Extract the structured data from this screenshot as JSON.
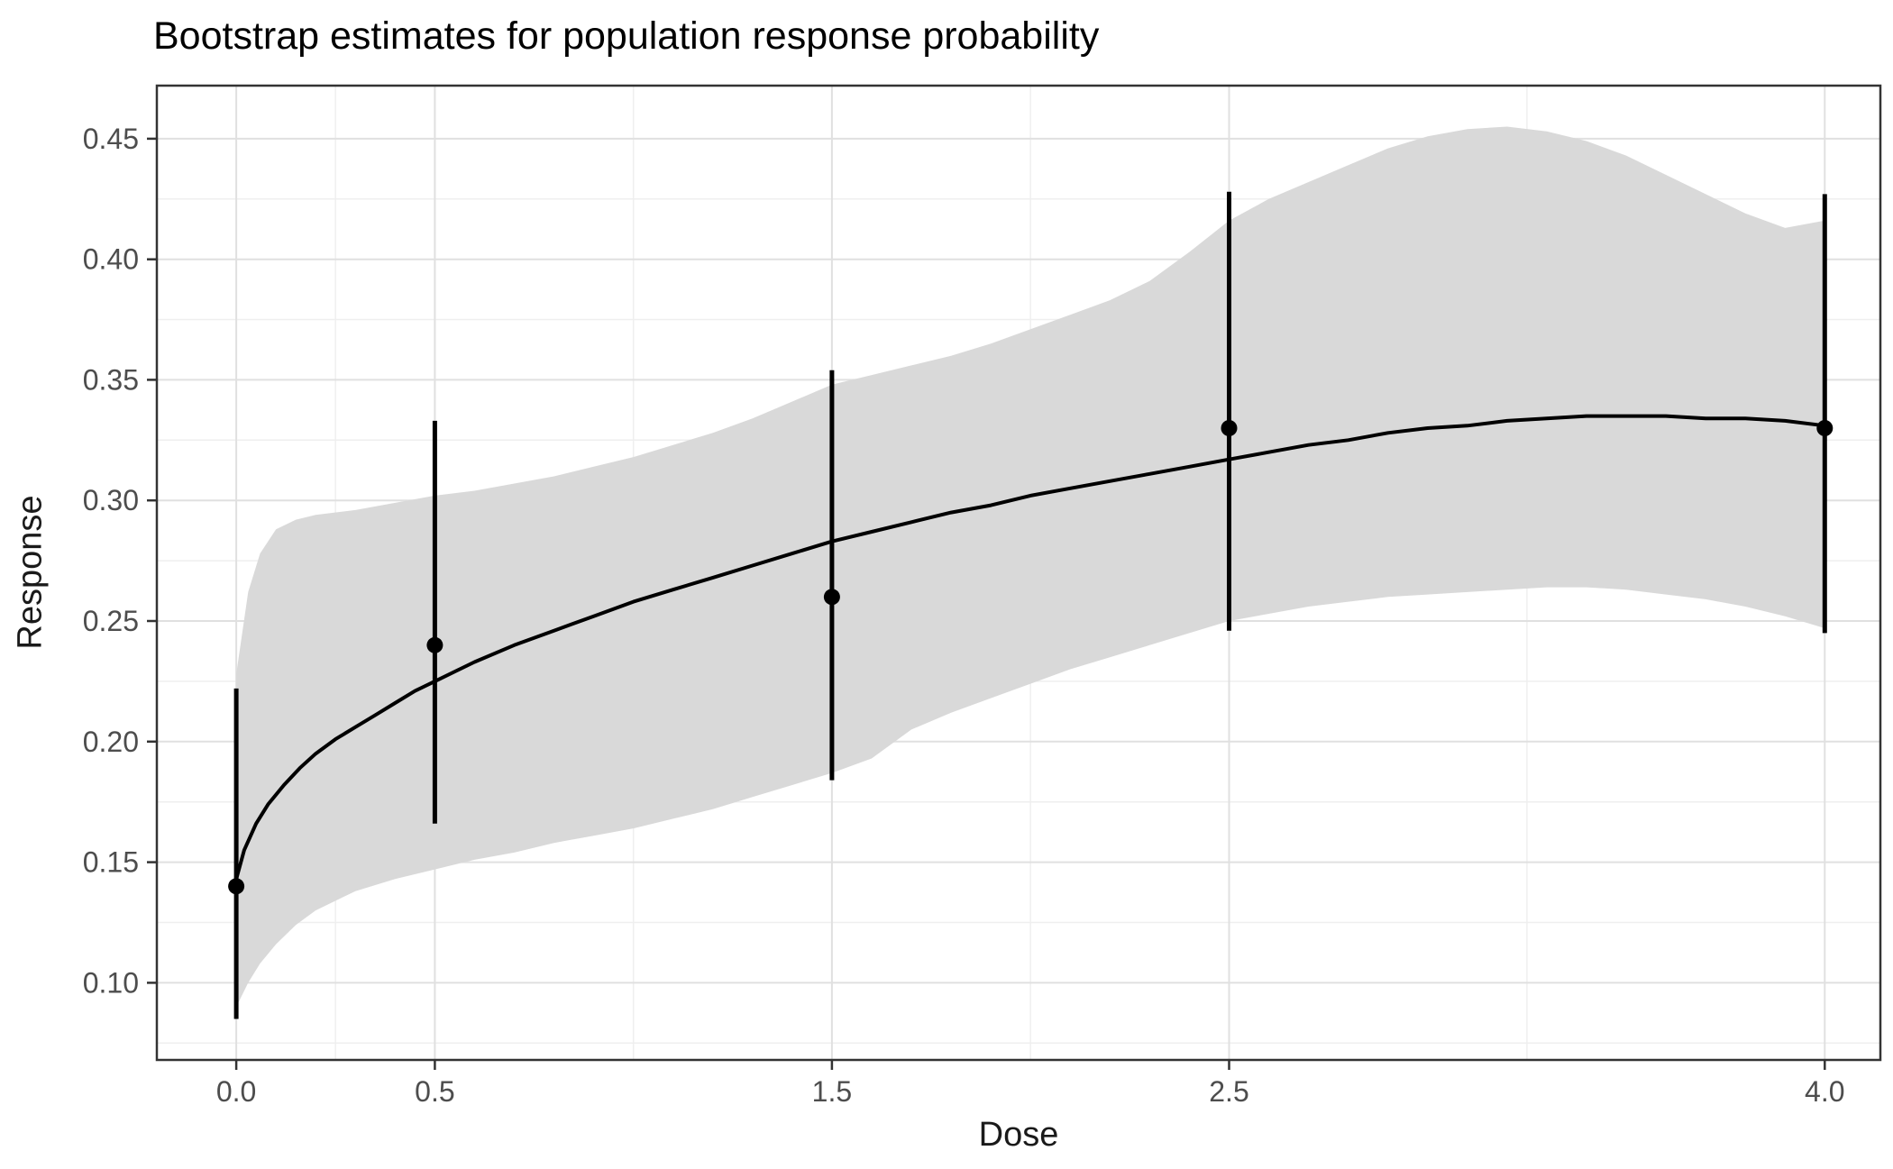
{
  "chart_data": {
    "type": "line",
    "title": "Bootstrap estimates for population response probability",
    "xlabel": "Dose",
    "ylabel": "Response",
    "xlim": [
      -0.2,
      4.14
    ],
    "ylim": [
      0.068,
      0.472
    ],
    "grid": "major-and-minor",
    "legend": "none",
    "x_ticks": {
      "values": [
        0.0,
        0.5,
        1.5,
        2.5,
        4.0
      ],
      "labels": [
        "0.0",
        "0.5",
        "1.5",
        "2.5",
        "4.0"
      ]
    },
    "y_ticks": {
      "values": [
        0.1,
        0.15,
        0.2,
        0.25,
        0.3,
        0.35,
        0.4,
        0.45
      ],
      "labels": [
        "0.10",
        "0.15",
        "0.20",
        "0.25",
        "0.30",
        "0.35",
        "0.40",
        "0.45"
      ]
    },
    "x_minor": [
      0.25,
      1.0,
      2.0,
      3.25
    ],
    "y_minor": [
      0.075,
      0.125,
      0.175,
      0.225,
      0.275,
      0.325,
      0.375,
      0.425
    ],
    "ribbon": {
      "name": "bootstrap confidence band",
      "x": [
        0.0,
        0.03,
        0.06,
        0.1,
        0.15,
        0.2,
        0.3,
        0.4,
        0.5,
        0.6,
        0.7,
        0.8,
        0.9,
        1.0,
        1.1,
        1.2,
        1.3,
        1.4,
        1.5,
        1.6,
        1.7,
        1.8,
        1.9,
        2.0,
        2.1,
        2.2,
        2.3,
        2.4,
        2.5,
        2.6,
        2.7,
        2.8,
        2.9,
        3.0,
        3.1,
        3.2,
        3.3,
        3.4,
        3.5,
        3.6,
        3.7,
        3.8,
        3.9,
        4.0
      ],
      "upper": [
        0.228,
        0.262,
        0.278,
        0.288,
        0.292,
        0.294,
        0.296,
        0.299,
        0.302,
        0.304,
        0.307,
        0.31,
        0.314,
        0.318,
        0.323,
        0.328,
        0.334,
        0.341,
        0.348,
        0.352,
        0.356,
        0.36,
        0.365,
        0.371,
        0.377,
        0.383,
        0.391,
        0.403,
        0.416,
        0.425,
        0.432,
        0.439,
        0.446,
        0.451,
        0.454,
        0.455,
        0.453,
        0.449,
        0.443,
        0.435,
        0.427,
        0.419,
        0.413,
        0.416
      ],
      "lower": [
        0.09,
        0.1,
        0.108,
        0.116,
        0.124,
        0.13,
        0.138,
        0.143,
        0.147,
        0.151,
        0.154,
        0.158,
        0.161,
        0.164,
        0.168,
        0.172,
        0.177,
        0.182,
        0.187,
        0.193,
        0.205,
        0.212,
        0.218,
        0.224,
        0.23,
        0.235,
        0.24,
        0.245,
        0.25,
        0.253,
        0.256,
        0.258,
        0.26,
        0.261,
        0.262,
        0.263,
        0.264,
        0.264,
        0.263,
        0.261,
        0.259,
        0.256,
        0.252,
        0.247
      ]
    },
    "curve": {
      "name": "bootstrap mean response curve",
      "x": [
        0.0,
        0.02,
        0.05,
        0.08,
        0.12,
        0.16,
        0.2,
        0.25,
        0.3,
        0.35,
        0.4,
        0.45,
        0.5,
        0.6,
        0.7,
        0.8,
        0.9,
        1.0,
        1.1,
        1.2,
        1.3,
        1.4,
        1.5,
        1.6,
        1.7,
        1.8,
        1.9,
        2.0,
        2.1,
        2.2,
        2.3,
        2.4,
        2.5,
        2.6,
        2.7,
        2.8,
        2.9,
        3.0,
        3.1,
        3.2,
        3.3,
        3.4,
        3.5,
        3.6,
        3.7,
        3.8,
        3.9,
        4.0
      ],
      "y": [
        0.143,
        0.155,
        0.166,
        0.174,
        0.182,
        0.189,
        0.195,
        0.201,
        0.206,
        0.211,
        0.216,
        0.221,
        0.225,
        0.233,
        0.24,
        0.246,
        0.252,
        0.258,
        0.263,
        0.268,
        0.273,
        0.278,
        0.283,
        0.287,
        0.291,
        0.295,
        0.298,
        0.302,
        0.305,
        0.308,
        0.311,
        0.314,
        0.317,
        0.32,
        0.323,
        0.325,
        0.328,
        0.33,
        0.331,
        0.333,
        0.334,
        0.335,
        0.335,
        0.335,
        0.334,
        0.334,
        0.333,
        0.331
      ]
    },
    "points": [
      {
        "x": 0.0,
        "y": 0.14,
        "lower": 0.085,
        "upper": 0.222
      },
      {
        "x": 0.5,
        "y": 0.24,
        "lower": 0.166,
        "upper": 0.333
      },
      {
        "x": 1.5,
        "y": 0.26,
        "lower": 0.184,
        "upper": 0.354
      },
      {
        "x": 2.5,
        "y": 0.33,
        "lower": 0.246,
        "upper": 0.428
      },
      {
        "x": 4.0,
        "y": 0.33,
        "lower": 0.245,
        "upper": 0.427
      }
    ],
    "colors": {
      "ribbon": "#d9d9d9",
      "line": "#000000",
      "point": "#000000",
      "grid_major": "#e0e0e0",
      "grid_minor": "#efefef",
      "panel_border": "#333333",
      "axis_tick": "#333333",
      "tick_label": "#4d4d4d",
      "title": "#000000"
    }
  }
}
